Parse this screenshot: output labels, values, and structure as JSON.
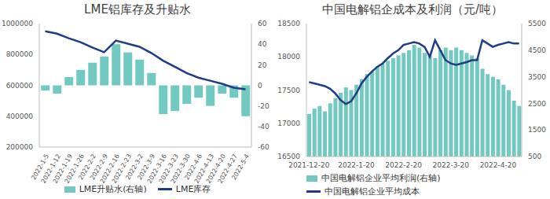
{
  "chart_data": [
    {
      "type": "combo",
      "title": "LME铝库存及升贴水",
      "categories": [
        "2022-1-5",
        "2022-1-12",
        "2022-1-19",
        "2022-1-26",
        "2022-2-2",
        "2022-2-9",
        "2022-2-16",
        "2022-2-23",
        "2022-3-2",
        "2022-3-9",
        "2022-3-16",
        "2022-3-23",
        "2022-3-30",
        "2022-4-6",
        "2022-4-13",
        "2022-4-20",
        "2022-4-27",
        "2022-5-4"
      ],
      "series": [
        {
          "name": "LME升贴水(右轴)",
          "type": "bar",
          "axis": "y2",
          "color": "#72c9c1",
          "values": [
            -5,
            -8,
            8,
            15,
            22,
            28,
            40,
            32,
            25,
            12,
            -28,
            -25,
            -18,
            -12,
            -20,
            -8,
            -12,
            -30
          ]
        },
        {
          "name": "LME库存",
          "type": "line",
          "color": "#1f3c88",
          "values": [
            950000,
            935000,
            905000,
            880000,
            845000,
            815000,
            890000,
            870000,
            850000,
            810000,
            760000,
            720000,
            680000,
            650000,
            630000,
            610000,
            585000,
            575000
          ]
        }
      ],
      "ylim": [
        200000,
        1000000
      ],
      "yticks": [
        200000,
        400000,
        600000,
        800000,
        1000000
      ],
      "y2lim": [
        -60,
        60
      ],
      "y2ticks": [
        -60,
        -40,
        -20,
        0,
        20,
        40,
        60
      ],
      "grid": false,
      "legend": "bottom"
    },
    {
      "type": "combo",
      "title": "中国电解铝企成本及利润（元/吨）",
      "categories": [
        "2021-12-20",
        null,
        null,
        null,
        null,
        null,
        null,
        null,
        null,
        "2022-1-20",
        null,
        null,
        null,
        null,
        null,
        null,
        null,
        null,
        "2022-2-20",
        null,
        null,
        null,
        null,
        null,
        null,
        null,
        null,
        "2022-3-20",
        null,
        null,
        null,
        null,
        null,
        null,
        null,
        null,
        "2022-4-20",
        null,
        null,
        null,
        null
      ],
      "series": [
        {
          "name": "中国电解铝企业平均利润(右轴)",
          "type": "bar",
          "axis": "y2",
          "color": "#72c9c1",
          "values": [
            2100,
            2300,
            2400,
            2200,
            2500,
            2700,
            2900,
            3100,
            3000,
            3200,
            3400,
            3600,
            3700,
            3900,
            4000,
            4100,
            4200,
            4300,
            4400,
            4500,
            4700,
            4600,
            4400,
            4300,
            4200,
            4500,
            4600,
            4500,
            4600,
            4500,
            4400,
            4300,
            4200,
            3800,
            3600,
            3500,
            3400,
            3200,
            3000,
            2600,
            2400
          ]
        },
        {
          "name": "中国电解铝企业平均成本",
          "type": "line",
          "color": "#1f3c88",
          "values": [
            17620,
            17600,
            17580,
            17560,
            17520,
            17450,
            17350,
            17290,
            17330,
            17450,
            17600,
            17700,
            17780,
            17850,
            17900,
            17980,
            18050,
            18100,
            18180,
            18200,
            18220,
            18200,
            18150,
            18000,
            18250,
            18100,
            17950,
            17900,
            17880,
            17900,
            17920,
            17950,
            17950,
            18250,
            18200,
            18150,
            18180,
            18200,
            18220,
            18200,
            18200
          ]
        }
      ],
      "ylim": [
        16500,
        18500
      ],
      "yticks": [
        16500,
        17000,
        17500,
        18000,
        18500
      ],
      "y2lim": [
        500,
        5500
      ],
      "y2ticks": [
        500,
        1500,
        2500,
        3500,
        4500,
        5500
      ],
      "grid": false,
      "legend": "bottom"
    }
  ]
}
